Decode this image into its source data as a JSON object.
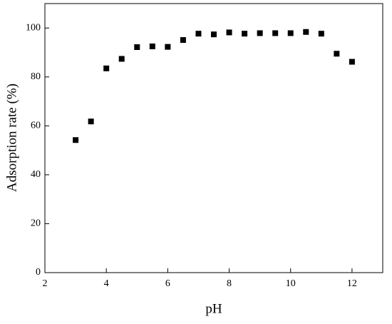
{
  "chart_data": {
    "type": "scatter",
    "xlabel": "pH",
    "ylabel": "Adsorption rate (%)",
    "series": [
      {
        "color": "#000000",
        "x": [
          3,
          3.5,
          4,
          4.5,
          5,
          5.5,
          6,
          6.5,
          7,
          7.5,
          8,
          8.5,
          9,
          9.5,
          10,
          10.5,
          11,
          11.5,
          12
        ],
        "values": [
          54.2,
          61.8,
          83.5,
          87.4,
          92.2,
          92.5,
          92.3,
          95.1,
          97.7,
          97.4,
          98.2,
          97.7,
          97.9,
          97.9,
          97.9,
          98.4,
          97.7,
          89.5,
          86.2
        ]
      }
    ],
    "xlim": [
      2,
      13
    ],
    "xticks": [
      2,
      4,
      6,
      8,
      10,
      12
    ],
    "ylim": [
      0,
      110
    ],
    "yticks": [
      0,
      20,
      40,
      60,
      80,
      100
    ]
  }
}
